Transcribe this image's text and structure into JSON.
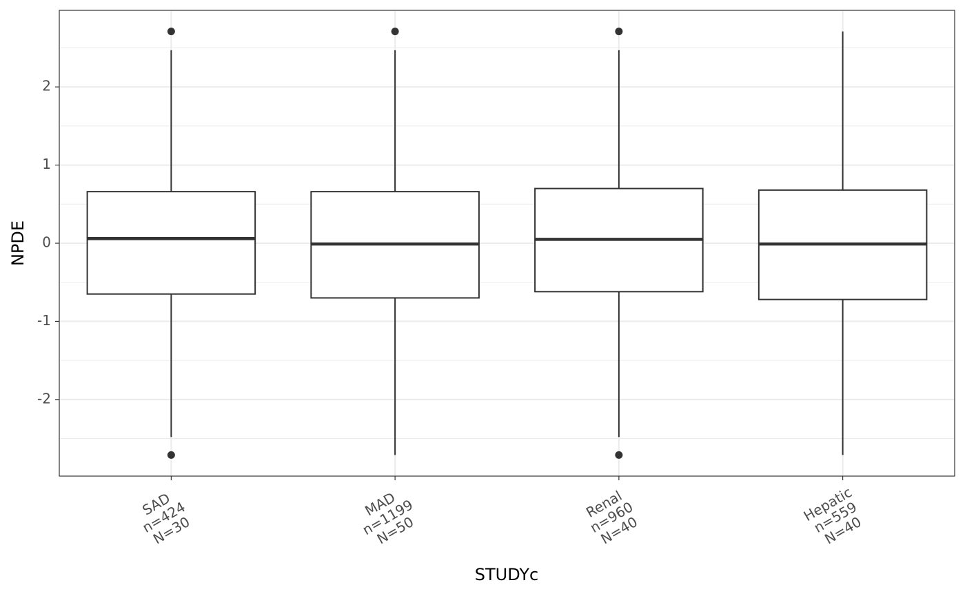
{
  "chart_data": {
    "type": "boxplot",
    "x_label": "STUDYc",
    "y_label": "NPDE",
    "categories": [
      [
        "SAD",
        "n=424",
        "N=30"
      ],
      [
        "MAD",
        "n=1199",
        "N=50"
      ],
      [
        "Renal",
        "n=960",
        "N=40"
      ],
      [
        "Hepatic",
        "n=559",
        "N=40"
      ]
    ],
    "boxes": [
      {
        "whisker_low": -2.48,
        "q1": -0.65,
        "median": 0.06,
        "q3": 0.66,
        "whisker_high": 2.47,
        "outliers": [
          2.71,
          -2.71
        ]
      },
      {
        "whisker_low": -2.71,
        "q1": -0.7,
        "median": -0.01,
        "q3": 0.66,
        "whisker_high": 2.47,
        "outliers": [
          2.71
        ]
      },
      {
        "whisker_low": -2.48,
        "q1": -0.62,
        "median": 0.05,
        "q3": 0.7,
        "whisker_high": 2.47,
        "outliers": [
          2.71,
          -2.71
        ]
      },
      {
        "whisker_low": -2.71,
        "q1": -0.72,
        "median": -0.01,
        "q3": 0.68,
        "whisker_high": 2.71,
        "outliers": []
      }
    ],
    "color": "#333333",
    "ylim": [
      -2.98,
      2.98
    ],
    "yticks": [
      -2,
      -1,
      0,
      1,
      2
    ],
    "minor_yticks": [
      -2.5,
      -1.5,
      -0.5,
      0.5,
      1.5,
      2.5
    ],
    "grid": true
  }
}
